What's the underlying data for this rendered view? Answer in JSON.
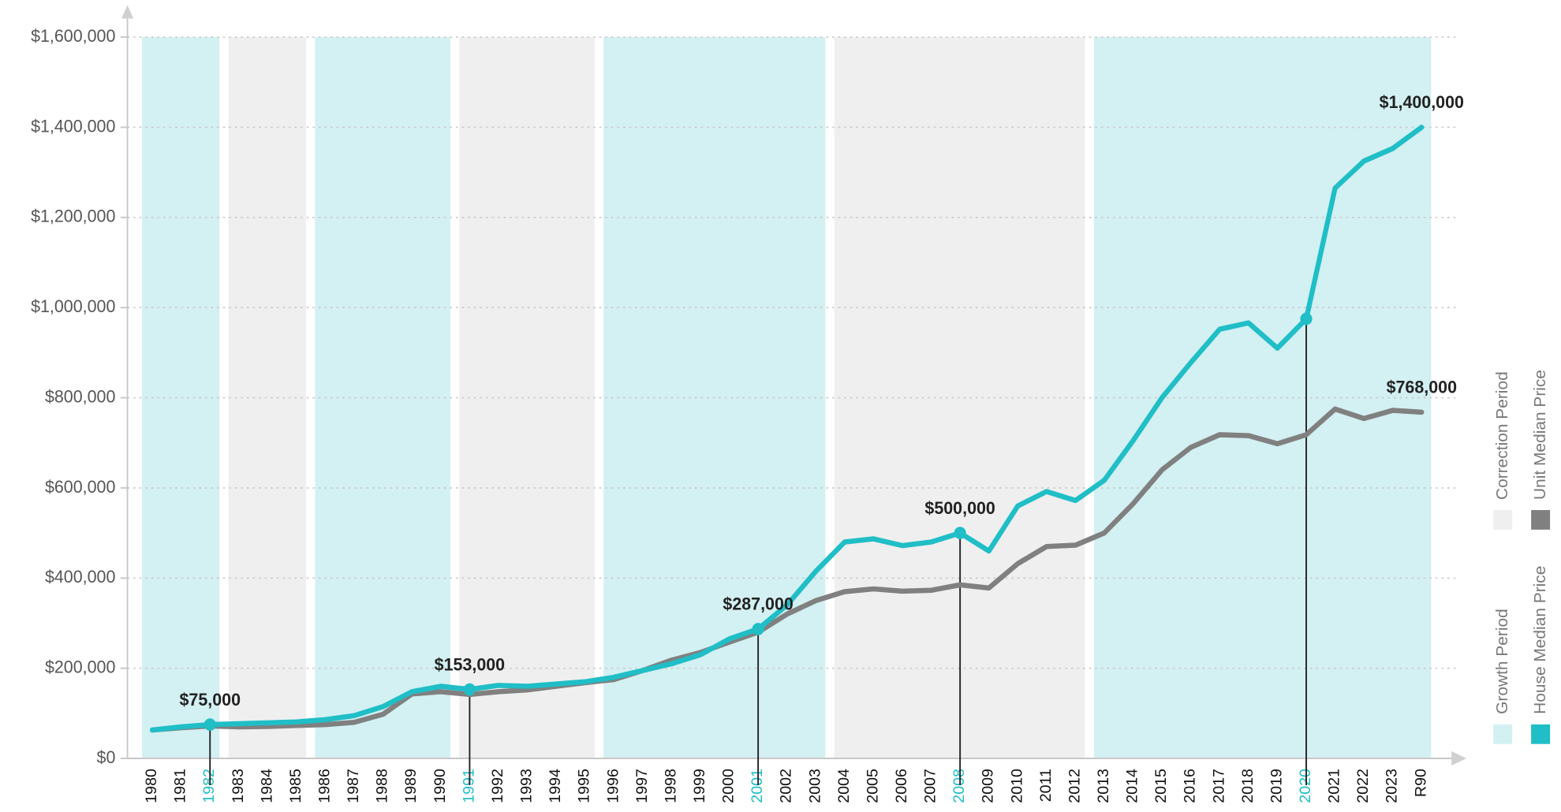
{
  "chart_data": {
    "type": "line",
    "categories": [
      "1980",
      "1981",
      "1982",
      "1983",
      "1984",
      "1985",
      "1986",
      "1987",
      "1988",
      "1989",
      "1990",
      "1991",
      "1992",
      "1993",
      "1994",
      "1995",
      "1996",
      "1997",
      "1998",
      "1999",
      "2000",
      "2001",
      "2002",
      "2003",
      "2004",
      "2005",
      "2006",
      "2007",
      "2008",
      "2009",
      "2010",
      "2011",
      "2012",
      "2013",
      "2014",
      "2015",
      "2016",
      "2017",
      "2018",
      "2019",
      "2020",
      "2021",
      "2022",
      "2023",
      "R90"
    ],
    "series": [
      {
        "name": "House Median Price",
        "color": "#20bec6",
        "values": [
          63000,
          70000,
          75000,
          77000,
          79000,
          81000,
          86000,
          95000,
          115000,
          148000,
          160000,
          153000,
          162000,
          160000,
          165000,
          170000,
          180000,
          195000,
          210000,
          230000,
          265000,
          287000,
          340000,
          415000,
          480000,
          487000,
          472000,
          480000,
          500000,
          460000,
          560000,
          592000,
          572000,
          617000,
          705000,
          800000,
          878000,
          952000,
          966000,
          910000,
          975000,
          1265000,
          1325000,
          1353000,
          1400000
        ],
        "value_labels": [
          null,
          null,
          "$75,000",
          null,
          null,
          null,
          null,
          null,
          null,
          null,
          null,
          "$153,000",
          null,
          null,
          null,
          null,
          null,
          null,
          null,
          null,
          null,
          "$287,000",
          null,
          null,
          null,
          null,
          null,
          null,
          "$500,000",
          null,
          null,
          null,
          null,
          null,
          null,
          null,
          null,
          null,
          null,
          null,
          null,
          null,
          null,
          null,
          "$1,400,000"
        ]
      },
      {
        "name": "Unit Median Price",
        "color": "#808080",
        "values": [
          63000,
          68000,
          72000,
          70000,
          71000,
          73000,
          75000,
          80000,
          98000,
          143000,
          148000,
          142000,
          148000,
          152000,
          160000,
          168000,
          175000,
          195000,
          218000,
          235000,
          258000,
          280000,
          320000,
          350000,
          370000,
          376000,
          371000,
          373000,
          385000,
          378000,
          432000,
          470000,
          473000,
          500000,
          565000,
          640000,
          690000,
          718000,
          716000,
          698000,
          718000,
          775000,
          754000,
          772000,
          768000
        ],
        "value_labels": [
          null,
          null,
          null,
          null,
          null,
          null,
          null,
          null,
          null,
          null,
          null,
          null,
          null,
          null,
          null,
          null,
          null,
          null,
          null,
          null,
          null,
          null,
          null,
          null,
          null,
          null,
          null,
          null,
          null,
          null,
          null,
          null,
          null,
          null,
          null,
          null,
          null,
          null,
          null,
          null,
          null,
          null,
          null,
          null,
          "$768,000"
        ]
      }
    ],
    "highlight": [
      "1982",
      "1991",
      "2001",
      "2008",
      "2020"
    ],
    "period_kinds": [
      {
        "name": "Growth Period",
        "color": "#d3f0f2"
      },
      {
        "name": "Correction Period",
        "color": "#efefef"
      }
    ],
    "periods": [
      {
        "kind": "Growth Period",
        "from": "1980",
        "to": "1982"
      },
      {
        "kind": "Correction Period",
        "from": "1983",
        "to": "1985"
      },
      {
        "kind": "Growth Period",
        "from": "1986",
        "to": "1990"
      },
      {
        "kind": "Correction Period",
        "from": "1991",
        "to": "1995"
      },
      {
        "kind": "Growth Period",
        "from": "1996",
        "to": "2003"
      },
      {
        "kind": "Correction Period",
        "from": "2004",
        "to": "2012"
      },
      {
        "kind": "Growth Period",
        "from": "2013",
        "to": "R90"
      }
    ],
    "ylim": [
      0,
      1600000
    ],
    "yticks": [
      {
        "value": 0,
        "label": "$0"
      },
      {
        "value": 200000,
        "label": "$200,000"
      },
      {
        "value": 400000,
        "label": "$400,000"
      },
      {
        "value": 600000,
        "label": "$600,000"
      },
      {
        "value": 800000,
        "label": "$800,000"
      },
      {
        "value": 1000000,
        "label": "$1,000,000"
      },
      {
        "value": 1200000,
        "label": "$1,200,000"
      },
      {
        "value": 1400000,
        "label": "$1,400,000"
      },
      {
        "value": 1600000,
        "label": "$1,600,000"
      }
    ],
    "grid": true
  }
}
